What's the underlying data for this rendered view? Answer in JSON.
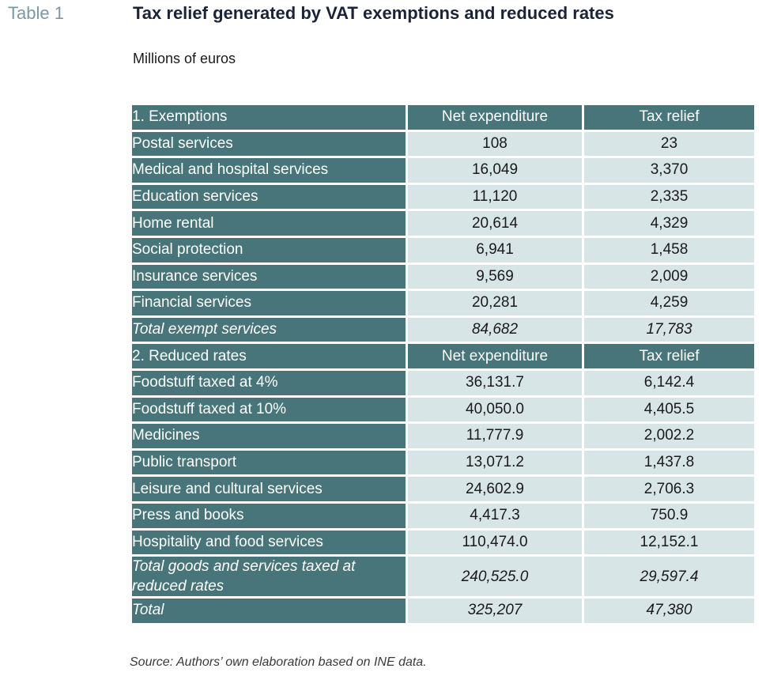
{
  "header": {
    "table_number": "Table 1",
    "title": "Tax relief generated by VAT exemptions and reduced rates",
    "subtitle": "Millions of euros"
  },
  "table": {
    "exemptions": {
      "header": [
        "1. Exemptions",
        "Net expenditure",
        "Tax relief"
      ],
      "rows": [
        [
          "Postal services",
          "108",
          "23"
        ],
        [
          "Medical and hospital services",
          "16,049",
          "3,370"
        ],
        [
          "Education services",
          "11,120",
          "2,335"
        ],
        [
          "Home rental",
          "20,614",
          "4,329"
        ],
        [
          "Social protection",
          "6,941",
          "1,458"
        ],
        [
          "Insurance services",
          "9,569",
          "2,009"
        ],
        [
          "Financial services",
          "20,281",
          "4,259"
        ]
      ],
      "total": [
        "Total exempt services",
        "84,682",
        "17,783"
      ]
    },
    "reduced_rates": {
      "header": [
        "2. Reduced rates",
        "Net expenditure",
        "Tax relief"
      ],
      "rows": [
        [
          "Foodstuff taxed at 4%",
          "36,131.7",
          "6,142.4"
        ],
        [
          "Foodstuff taxed at 10%",
          "40,050.0",
          "4,405.5"
        ],
        [
          "Medicines",
          "11,777.9",
          "2,002.2"
        ],
        [
          "Public transport",
          "13,071.2",
          "1,437.8"
        ],
        [
          "Leisure and cultural services",
          "24,602.9",
          "2,706.3"
        ],
        [
          "Press and books",
          "4,417.3",
          "750.9"
        ],
        [
          "Hospitality and food services",
          "110,474.0",
          "12,152.1"
        ]
      ],
      "total": [
        "Total goods and services taxed at reduced rates",
        "240,525.0",
        "29,597.4"
      ]
    },
    "grand_total": [
      "Total",
      "325,207",
      "47,380"
    ]
  },
  "footer": {
    "source": "Source: Authors’ own elaboration based on INE data."
  },
  "colors": {
    "header_fill": "#47757a",
    "row_fill": "#d8e5e7",
    "table_number": "#7b98a6",
    "title": "#1b2436"
  }
}
